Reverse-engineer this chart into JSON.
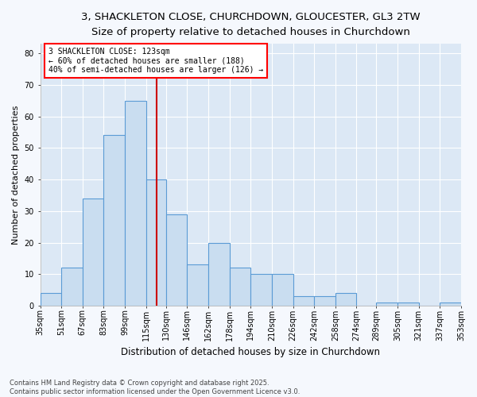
{
  "title_line1": "3, SHACKLETON CLOSE, CHURCHDOWN, GLOUCESTER, GL3 2TW",
  "title_line2": "Size of property relative to detached houses in Churchdown",
  "xlabel": "Distribution of detached houses by size in Churchdown",
  "ylabel": "Number of detached properties",
  "bar_color": "#c9ddf0",
  "bar_edge_color": "#5b9bd5",
  "plot_bg_color": "#dce8f5",
  "fig_bg_color": "#f5f8fd",
  "grid_color": "#ffffff",
  "vline_x": 123,
  "vline_color": "#cc0000",
  "bin_edges": [
    35,
    51,
    67,
    83,
    99,
    115,
    130,
    146,
    162,
    178,
    194,
    210,
    226,
    242,
    258,
    274,
    289,
    305,
    321,
    337,
    353
  ],
  "bin_labels": [
    "35sqm",
    "51sqm",
    "67sqm",
    "83sqm",
    "99sqm",
    "115sqm",
    "130sqm",
    "146sqm",
    "162sqm",
    "178sqm",
    "194sqm",
    "210sqm",
    "226sqm",
    "242sqm",
    "258sqm",
    "274sqm",
    "289sqm",
    "305sqm",
    "321sqm",
    "337sqm",
    "353sqm"
  ],
  "counts": [
    4,
    12,
    34,
    54,
    65,
    40,
    29,
    13,
    20,
    12,
    10,
    10,
    3,
    3,
    4,
    0,
    1,
    1,
    0,
    1
  ],
  "ylim": [
    0,
    83
  ],
  "yticks": [
    0,
    10,
    20,
    30,
    40,
    50,
    60,
    70,
    80
  ],
  "annotation_line1": "3 SHACKLETON CLOSE: 123sqm",
  "annotation_line2": "← 60% of detached houses are smaller (188)",
  "annotation_line3": "40% of semi-detached houses are larger (126) →",
  "footnote": "Contains HM Land Registry data © Crown copyright and database right 2025.\nContains public sector information licensed under the Open Government Licence v3.0.",
  "title_fontsize": 9.5,
  "subtitle_fontsize": 9.5,
  "xlabel_fontsize": 8.5,
  "ylabel_fontsize": 8,
  "tick_fontsize": 7,
  "annotation_fontsize": 7,
  "footnote_fontsize": 6
}
